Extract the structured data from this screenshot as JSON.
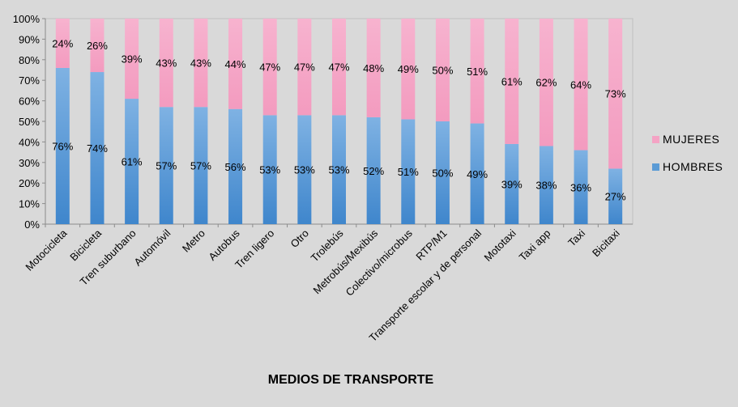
{
  "chart_data": {
    "type": "bar",
    "stacked": true,
    "percent_stacked": true,
    "title": "",
    "xlabel": "MEDIOS DE TRANSPORTE",
    "ylabel": "",
    "ylim": [
      0,
      100
    ],
    "y_ticks": [
      "0%",
      "10%",
      "20%",
      "30%",
      "40%",
      "50%",
      "60%",
      "70%",
      "80%",
      "90%",
      "100%"
    ],
    "categories": [
      "Motocicleta",
      "Bicicleta",
      "Tren suburbano",
      "Automóvil",
      "Metro",
      "Autobus",
      "Tren ligero",
      "Otro",
      "Trolebús",
      "Metrobús/Mexibús",
      "Colectivo/microbus",
      "RTP/M1",
      "Transporte escolar y de personal",
      "Mototaxi",
      "Taxi app",
      "Taxi",
      "Bicitaxi"
    ],
    "series": [
      {
        "name": "HOMBRES",
        "color": "#5b9bd5",
        "values": [
          76,
          74,
          61,
          57,
          57,
          56,
          53,
          53,
          53,
          52,
          51,
          50,
          49,
          39,
          38,
          36,
          27
        ],
        "labels": [
          "76%",
          "74%",
          "61%",
          "57%",
          "57%",
          "56%",
          "53%",
          "53%",
          "53%",
          "52%",
          "51%",
          "50%",
          "49%",
          "39%",
          "38%",
          "36%",
          "27%"
        ]
      },
      {
        "name": "MUJERES",
        "color": "#f4a3c4",
        "values": [
          24,
          26,
          39,
          43,
          43,
          44,
          47,
          47,
          47,
          48,
          49,
          50,
          51,
          61,
          62,
          64,
          73
        ],
        "labels": [
          "24%",
          "26%",
          "39%",
          "43%",
          "43%",
          "44%",
          "47%",
          "47%",
          "47%",
          "48%",
          "49%",
          "50%",
          "51%",
          "61%",
          "62%",
          "64%",
          "73%"
        ]
      }
    ],
    "legend": {
      "position": "right",
      "entries": [
        "MUJERES",
        "HOMBRES"
      ]
    },
    "grid": false
  }
}
